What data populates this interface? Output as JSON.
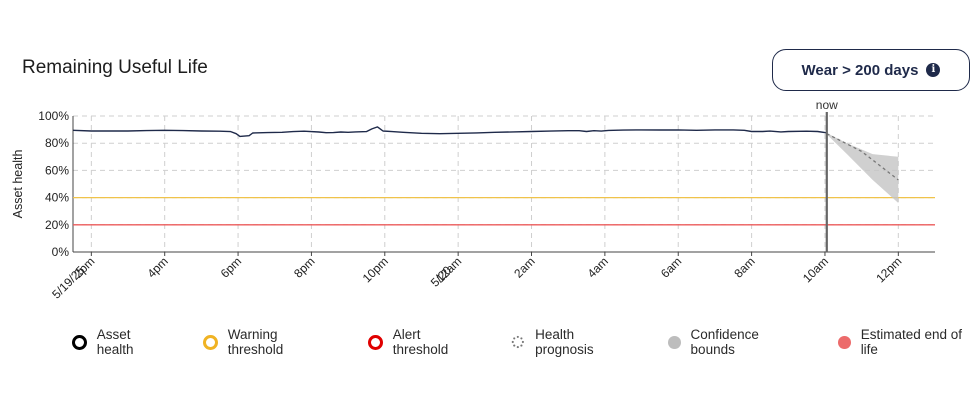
{
  "header": {
    "title": "Remaining Useful Life",
    "wear_label": "Wear > 200 days",
    "wear_icon": "info-icon"
  },
  "chart_data": {
    "type": "line",
    "ylabel": "Asset health",
    "ylim": [
      0,
      100
    ],
    "yticks": [
      0,
      20,
      40,
      60,
      80,
      100
    ],
    "ytick_labels": [
      "0%",
      "20%",
      "40%",
      "60%",
      "80%",
      "100%"
    ],
    "xlim": [
      13.5,
      37
    ],
    "xticks": [
      {
        "t": 14,
        "lines": [
          "2pm",
          "5/19/25"
        ]
      },
      {
        "t": 16,
        "lines": [
          "4pm"
        ]
      },
      {
        "t": 18,
        "lines": [
          "6pm"
        ]
      },
      {
        "t": 20,
        "lines": [
          "8pm"
        ]
      },
      {
        "t": 22,
        "lines": [
          "10pm"
        ]
      },
      {
        "t": 24,
        "lines": [
          "12am",
          "5/20"
        ]
      },
      {
        "t": 26,
        "lines": [
          "2am"
        ]
      },
      {
        "t": 28,
        "lines": [
          "4am"
        ]
      },
      {
        "t": 30,
        "lines": [
          "6am"
        ]
      },
      {
        "t": 32,
        "lines": [
          "8am"
        ]
      },
      {
        "t": 34,
        "lines": [
          "10am"
        ]
      },
      {
        "t": 36,
        "lines": [
          "12pm"
        ]
      }
    ],
    "now": {
      "t": 34.05,
      "label": "now"
    },
    "warning_threshold": 40,
    "alert_threshold": 20,
    "series": [
      {
        "name": "Asset health",
        "color": "#1f2a4a",
        "points": [
          [
            13.5,
            89.5
          ],
          [
            14.0,
            89.0
          ],
          [
            14.5,
            89.0
          ],
          [
            15.0,
            89.0
          ],
          [
            15.5,
            89.3
          ],
          [
            16.0,
            89.5
          ],
          [
            16.5,
            89.3
          ],
          [
            17.0,
            89.0
          ],
          [
            17.5,
            88.8
          ],
          [
            17.8,
            88.5
          ],
          [
            17.95,
            87.0
          ],
          [
            18.05,
            85.0
          ],
          [
            18.3,
            85.5
          ],
          [
            18.4,
            87.5
          ],
          [
            18.8,
            87.8
          ],
          [
            19.2,
            88.0
          ],
          [
            19.5,
            88.5
          ],
          [
            19.8,
            88.8
          ],
          [
            20.2,
            88.2
          ],
          [
            20.4,
            87.7
          ],
          [
            20.6,
            87.8
          ],
          [
            20.8,
            88.2
          ],
          [
            21.0,
            88.0
          ],
          [
            21.2,
            88.3
          ],
          [
            21.5,
            88.5
          ],
          [
            21.65,
            90.5
          ],
          [
            21.8,
            92.0
          ],
          [
            21.95,
            89.0
          ],
          [
            22.2,
            88.5
          ],
          [
            22.5,
            88.0
          ],
          [
            23.0,
            87.3
          ],
          [
            23.5,
            87.0
          ],
          [
            24.0,
            87.3
          ],
          [
            24.5,
            87.6
          ],
          [
            25.0,
            88.0
          ],
          [
            25.5,
            88.3
          ],
          [
            26.0,
            88.6
          ],
          [
            26.5,
            88.9
          ],
          [
            27.0,
            89.2
          ],
          [
            27.3,
            89.2
          ],
          [
            27.5,
            88.6
          ],
          [
            27.7,
            89.2
          ],
          [
            27.9,
            88.9
          ],
          [
            28.1,
            89.4
          ],
          [
            28.5,
            89.6
          ],
          [
            29.0,
            89.8
          ],
          [
            29.5,
            89.7
          ],
          [
            30.0,
            89.8
          ],
          [
            30.5,
            89.5
          ],
          [
            31.0,
            89.8
          ],
          [
            31.5,
            89.8
          ],
          [
            31.8,
            89.5
          ],
          [
            32.0,
            88.6
          ],
          [
            32.3,
            88.6
          ],
          [
            32.5,
            88.9
          ],
          [
            32.8,
            88.3
          ],
          [
            33.0,
            88.6
          ],
          [
            33.5,
            88.8
          ],
          [
            33.8,
            88.6
          ],
          [
            34.0,
            87.8
          ],
          [
            34.05,
            87.5
          ]
        ]
      },
      {
        "name": "Health prognosis",
        "color": "#777777",
        "points": [
          [
            34.05,
            87.0
          ],
          [
            35.0,
            74.0
          ],
          [
            36.0,
            53.0
          ]
        ]
      }
    ],
    "confidence_bounds": {
      "color": "#c4c4c4",
      "upper": [
        [
          34.05,
          87.5
        ],
        [
          34.6,
          80.0
        ],
        [
          35.3,
          72.0
        ],
        [
          36.0,
          70.0
        ]
      ],
      "lower": [
        [
          36.0,
          36.0
        ],
        [
          35.3,
          53.0
        ],
        [
          34.6,
          72.0
        ],
        [
          34.05,
          86.5
        ]
      ]
    },
    "grid": true,
    "legend_position": "bottom",
    "legend": [
      {
        "label": "Asset health",
        "marker": "ring",
        "color": "#000000"
      },
      {
        "label": "Warning threshold",
        "marker": "ring",
        "color": "#f0b324"
      },
      {
        "label": "Alert threshold",
        "marker": "ring",
        "color": "#e00000"
      },
      {
        "label": "Health prognosis",
        "marker": "prognosis",
        "color": "#777777"
      },
      {
        "label": "Confidence bounds",
        "marker": "dot",
        "color": "#bdbdbd"
      },
      {
        "label": "Estimated end of life",
        "marker": "dot",
        "color": "#ec6b6b"
      }
    ],
    "colors": {
      "warning": "#f0c34a",
      "alert": "#ec5b5b",
      "grid": "#cfcfcf",
      "now_line": "#666666"
    }
  }
}
